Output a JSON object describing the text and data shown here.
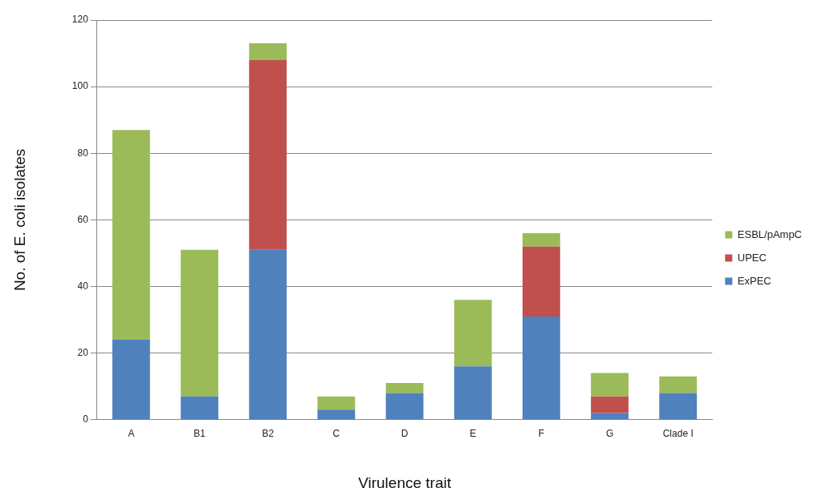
{
  "chart_data": {
    "type": "bar",
    "stacked": true,
    "xlabel": "Virulence trait",
    "ylabel": "No. of E. coli isolates",
    "categories": [
      "A",
      "B1",
      "B2",
      "C",
      "D",
      "E",
      "F",
      "G",
      "Clade I"
    ],
    "series": [
      {
        "name": "ExPEC",
        "color": "#4f81bd",
        "values": [
          24,
          7,
          51,
          3,
          8,
          16,
          31,
          2,
          8
        ]
      },
      {
        "name": "UPEC",
        "color": "#c0504d",
        "values": [
          0,
          0,
          57,
          0,
          0,
          0,
          21,
          5,
          0
        ]
      },
      {
        "name": "ESBL/pAmpC",
        "color": "#9bbb59",
        "values": [
          63,
          44,
          5,
          4,
          3,
          20,
          4,
          7,
          5
        ]
      }
    ],
    "ylim": [
      0,
      120
    ],
    "yticks": [
      0,
      20,
      40,
      60,
      80,
      100,
      120
    ],
    "grid": "y",
    "legend": "right"
  }
}
